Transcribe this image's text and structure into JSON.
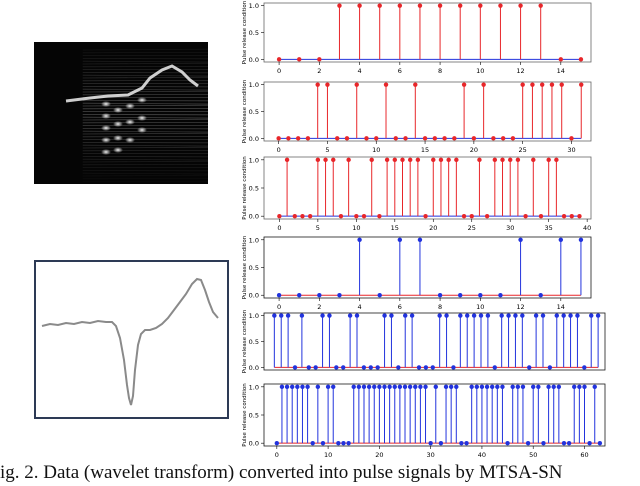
{
  "caption": "ig. 2.  Data (wavelet transform) converted into pulse signals by MTSA-SN",
  "left_images": {
    "spectrogram": {
      "description_icon": "wavelet-spectrogram-image"
    },
    "waveform": {
      "description_icon": "waveform-line-image"
    }
  },
  "chart_data": [
    {
      "type": "stem",
      "ylabel": "Pulse release condition",
      "xlim": [
        -0.75,
        15.5
      ],
      "ylim": [
        -0.05,
        1.05
      ],
      "xticks": [
        0,
        2,
        4,
        6,
        8,
        10,
        12,
        14
      ],
      "yticks": [
        0.0,
        0.5,
        1.0
      ],
      "stem_color": "#e8262a",
      "baseline_color": "#2233dd",
      "marker_color": "#e8262a",
      "x": [
        0,
        1,
        2,
        3,
        4,
        5,
        6,
        7,
        8,
        9,
        10,
        11,
        12,
        13,
        14,
        15
      ],
      "values": [
        0,
        0,
        0,
        1,
        1,
        1,
        1,
        1,
        1,
        1,
        1,
        1,
        1,
        1,
        0,
        0
      ]
    },
    {
      "type": "stem",
      "ylabel": "Pulse release condition",
      "xlim": [
        -1.5,
        32
      ],
      "ylim": [
        -0.05,
        1.05
      ],
      "xticks": [
        0,
        5,
        10,
        15,
        20,
        25,
        30
      ],
      "yticks": [
        0.0,
        0.5,
        1.0
      ],
      "stem_color": "#e8262a",
      "baseline_color": "#2233dd",
      "marker_color": "#e8262a",
      "x": [
        0,
        1,
        2,
        3,
        4,
        5,
        6,
        7,
        8,
        9,
        10,
        11,
        12,
        13,
        14,
        15,
        16,
        17,
        18,
        19,
        20,
        21,
        22,
        23,
        24,
        25,
        26,
        27,
        28,
        29,
        30,
        31
      ],
      "values": [
        0,
        0,
        0,
        0,
        1,
        1,
        0,
        0,
        1,
        0,
        0,
        1,
        0,
        0,
        1,
        0,
        0,
        0,
        0,
        1,
        0,
        1,
        0,
        0,
        0,
        1,
        1,
        1,
        1,
        1,
        0,
        1
      ]
    },
    {
      "type": "stem",
      "ylabel": "Pulse release condition",
      "xlim": [
        -2,
        40.5
      ],
      "ylim": [
        -0.05,
        1.05
      ],
      "xticks": [
        0,
        5,
        10,
        15,
        20,
        25,
        30,
        35,
        40
      ],
      "yticks": [
        0.0,
        0.5,
        1.0
      ],
      "stem_color": "#e8262a",
      "baseline_color": "#2233dd",
      "marker_color": "#e8262a",
      "x": [
        0,
        1,
        2,
        3,
        4,
        5,
        6,
        7,
        8,
        9,
        10,
        11,
        12,
        13,
        14,
        15,
        16,
        17,
        18,
        19,
        20,
        21,
        22,
        23,
        24,
        25,
        26,
        27,
        28,
        29,
        30,
        31,
        32,
        33,
        34,
        35,
        36,
        37,
        38,
        39
      ],
      "values": [
        0,
        1,
        0,
        0,
        0,
        1,
        1,
        1,
        0,
        1,
        0,
        0,
        1,
        0,
        1,
        1,
        1,
        1,
        1,
        0,
        1,
        1,
        1,
        1,
        0,
        0,
        1,
        0,
        1,
        1,
        1,
        1,
        0,
        1,
        0,
        1,
        1,
        0,
        0,
        0
      ]
    },
    {
      "type": "stem",
      "ylabel": "Pulse release condition",
      "xlim": [
        -0.75,
        15.5
      ],
      "ylim": [
        -0.05,
        1.05
      ],
      "xticks": [
        0,
        2,
        4,
        6,
        8,
        10,
        12,
        14
      ],
      "yticks": [
        0.0,
        0.5,
        1.0
      ],
      "stem_color": "#2233dd",
      "baseline_color": "#e8262a",
      "marker_color": "#2233dd",
      "x": [
        0,
        1,
        2,
        3,
        4,
        5,
        6,
        7,
        8,
        9,
        10,
        11,
        12,
        13,
        14,
        15
      ],
      "values": [
        0,
        0,
        0,
        0,
        1,
        0,
        1,
        1,
        0,
        0,
        0,
        0,
        1,
        0,
        1,
        1
      ]
    },
    {
      "type": "stem",
      "ylabel": "Pulse release condition",
      "xlim": [
        -1.5,
        48
      ],
      "ylim": [
        -0.05,
        1.05
      ],
      "xticks": [],
      "yticks": [
        0.0,
        0.5,
        1.0
      ],
      "stem_color": "#2233dd",
      "baseline_color": "#e8262a",
      "marker_color": "#2233dd",
      "x": [
        0,
        1,
        2,
        3,
        4,
        5,
        6,
        7,
        8,
        9,
        10,
        11,
        12,
        13,
        14,
        15,
        16,
        17,
        18,
        19,
        20,
        21,
        22,
        23,
        24,
        25,
        26,
        27,
        28,
        29,
        30,
        31,
        32,
        33,
        34,
        35,
        36,
        37,
        38,
        39,
        40,
        41,
        42,
        43,
        44,
        45,
        46,
        47
      ],
      "values": [
        1,
        1,
        1,
        0,
        1,
        0,
        0,
        1,
        1,
        0,
        0,
        1,
        1,
        0,
        0,
        0,
        1,
        1,
        0,
        1,
        1,
        0,
        0,
        0,
        1,
        1,
        0,
        1,
        1,
        1,
        1,
        1,
        0,
        1,
        1,
        1,
        1,
        0,
        1,
        1,
        0,
        1,
        1,
        1,
        1,
        0,
        1,
        1
      ]
    },
    {
      "type": "stem",
      "ylabel": "Pulse release condition",
      "xlim": [
        -2.5,
        64
      ],
      "ylim": [
        -0.05,
        1.05
      ],
      "xticks": [
        0,
        10,
        20,
        30,
        40,
        50,
        60
      ],
      "yticks": [
        0.0,
        0.5,
        1.0
      ],
      "stem_color": "#2233dd",
      "baseline_color": "#e8262a",
      "marker_color": "#2233dd",
      "x": [
        0,
        1,
        2,
        3,
        4,
        5,
        6,
        7,
        8,
        9,
        10,
        11,
        12,
        13,
        14,
        15,
        16,
        17,
        18,
        19,
        20,
        21,
        22,
        23,
        24,
        25,
        26,
        27,
        28,
        29,
        30,
        31,
        32,
        33,
        34,
        35,
        36,
        37,
        38,
        39,
        40,
        41,
        42,
        43,
        44,
        45,
        46,
        47,
        48,
        49,
        50,
        51,
        52,
        53,
        54,
        55,
        56,
        57,
        58,
        59,
        60,
        61,
        62,
        63
      ],
      "values": [
        0,
        1,
        1,
        1,
        1,
        1,
        1,
        0,
        1,
        0,
        1,
        1,
        0,
        0,
        0,
        1,
        1,
        1,
        1,
        1,
        1,
        1,
        1,
        1,
        1,
        1,
        1,
        1,
        1,
        1,
        0,
        1,
        0,
        1,
        1,
        1,
        0,
        0,
        1,
        1,
        1,
        1,
        1,
        1,
        1,
        0,
        1,
        1,
        1,
        0,
        1,
        1,
        0,
        1,
        1,
        1,
        0,
        0,
        1,
        1,
        1,
        0,
        1,
        0
      ]
    }
  ]
}
